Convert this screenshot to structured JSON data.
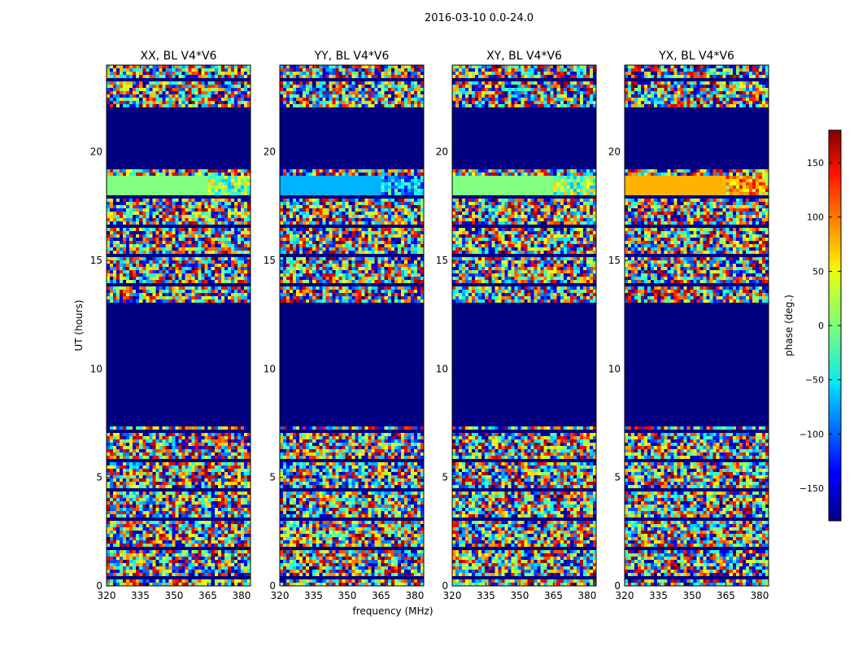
{
  "suptitle": "2016-03-10 0.0-24.0",
  "chart_data": {
    "type": "heatmap",
    "ylabel": "UT (hours)",
    "xlabel": "frequency (MHz)",
    "xlim": [
      320,
      384
    ],
    "ylim": [
      0,
      24
    ],
    "xticks": [
      320,
      335,
      350,
      365,
      380
    ],
    "yticks": [
      0,
      5,
      10,
      15,
      20
    ],
    "colormap": "jet",
    "panels": [
      {
        "title": "XX, BL V4*V6",
        "id": "xx"
      },
      {
        "title": "YY, BL V4*V6",
        "id": "yy"
      },
      {
        "title": "XY, BL V4*V6",
        "id": "xy"
      },
      {
        "title": "YX, BL V4*V6",
        "id": "yx"
      }
    ],
    "flagged_ut_ranges": [
      [
        7.4,
        13.0
      ],
      [
        19.2,
        22.0
      ]
    ],
    "colorbar": {
      "label": "phase (deg.)",
      "range": [
        -180,
        180
      ],
      "ticks": [
        -150,
        -100,
        -50,
        0,
        50,
        100,
        150
      ],
      "tick_labels": [
        "−150",
        "−100",
        "−50",
        "0",
        "50",
        "100",
        "150"
      ]
    }
  }
}
